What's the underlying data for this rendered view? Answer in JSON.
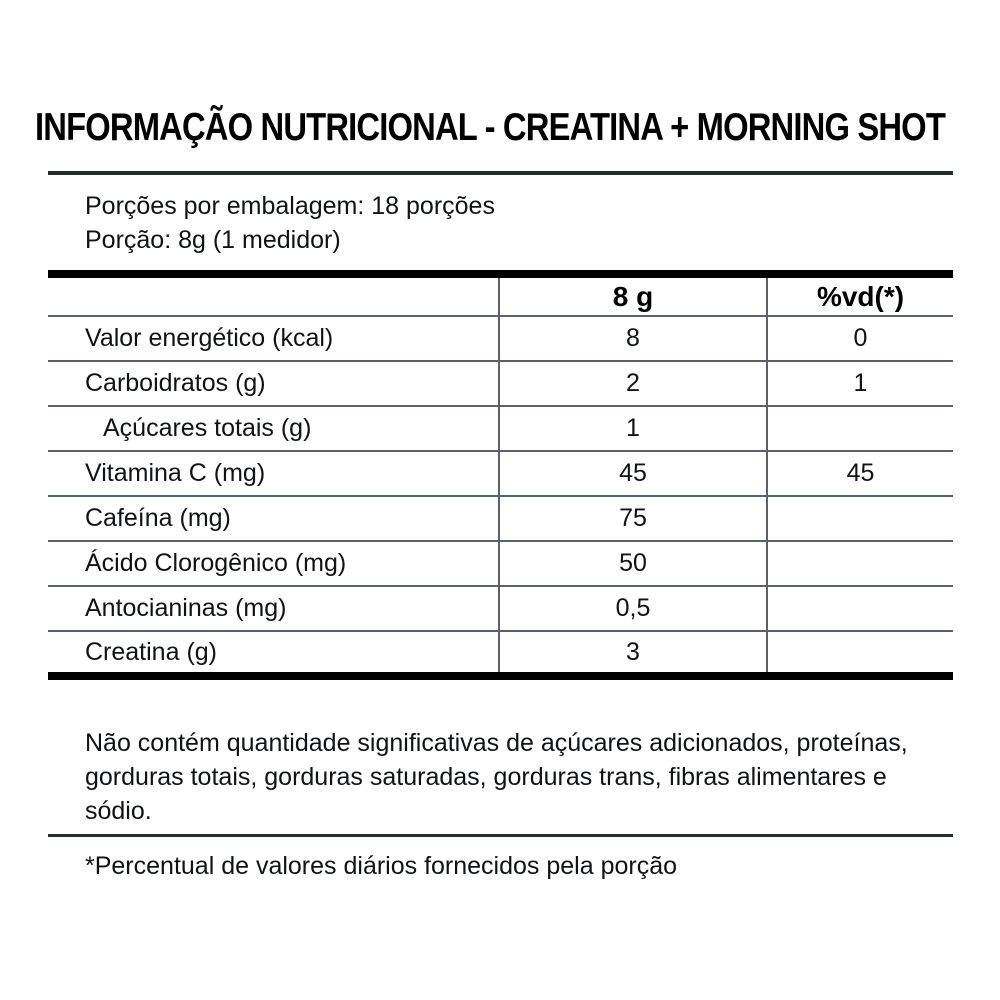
{
  "title": "INFORMAÇÃO NUTRICIONAL - CREATINA + MORNING SHOT",
  "serving_info": {
    "servings_per_package": "Porções por embalagem: 18 porções",
    "serving_size": "Porção: 8g (1 medidor)"
  },
  "table": {
    "columns": [
      "",
      "8 g",
      "%vd(*)"
    ],
    "rows": [
      {
        "label": "Valor energético (kcal)",
        "amount": "8",
        "dv": "0",
        "indent": false
      },
      {
        "label": "Carboidratos (g)",
        "amount": "2",
        "dv": "1",
        "indent": false
      },
      {
        "label": "Açúcares totais (g)",
        "amount": "1",
        "dv": "",
        "indent": true
      },
      {
        "label": "Vitamina C (mg)",
        "amount": "45",
        "dv": "45",
        "indent": false
      },
      {
        "label": "Cafeína (mg)",
        "amount": "75",
        "dv": "",
        "indent": false
      },
      {
        "label": "Ácido Clorogênico (mg)",
        "amount": "50",
        "dv": "",
        "indent": false
      },
      {
        "label": "Antocianinas (mg)",
        "amount": "0,5",
        "dv": "",
        "indent": false
      },
      {
        "label": "Creatina (g)",
        "amount": "3",
        "dv": "",
        "indent": false
      }
    ]
  },
  "footnotes": {
    "no_significant_amounts": "Não contém quantidade significativas de açúcares adicionados, proteínas, gorduras totais, gorduras saturadas, gorduras trans, fibras alimentares e sódio.",
    "daily_value_note": "*Percentual de valores diários fornecidos pela porção"
  },
  "colors": {
    "background": "#ffffff",
    "text": "#101214",
    "thick_rule": "#000000",
    "thin_rule": "#5b6168",
    "divider_rule": "#262b31"
  }
}
